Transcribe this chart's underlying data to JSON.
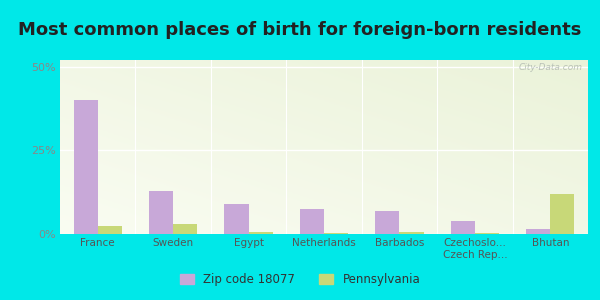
{
  "title": "Most common places of birth for foreign-born residents",
  "categories": [
    "France",
    "Sweden",
    "Egypt",
    "Netherlands",
    "Barbados",
    "Czechoslo...\nCzech Rep...",
    "Bhutan"
  ],
  "zip_values": [
    40,
    13,
    9,
    7.5,
    7,
    4,
    1.5
  ],
  "pa_values": [
    2.5,
    3,
    0.5,
    0.3,
    0.5,
    0.3,
    12
  ],
  "zip_color": "#c8a8d8",
  "pa_color": "#c8d878",
  "background_color": "#00e8e8",
  "ylim": [
    0,
    52
  ],
  "yticks": [
    0,
    25,
    50
  ],
  "ytick_labels": [
    "0%",
    "25%",
    "50%"
  ],
  "title_fontsize": 13,
  "legend_zip_label": "Zip code 18077",
  "legend_pa_label": "Pennsylvania",
  "bar_width": 0.32,
  "watermark": "City-Data.com"
}
